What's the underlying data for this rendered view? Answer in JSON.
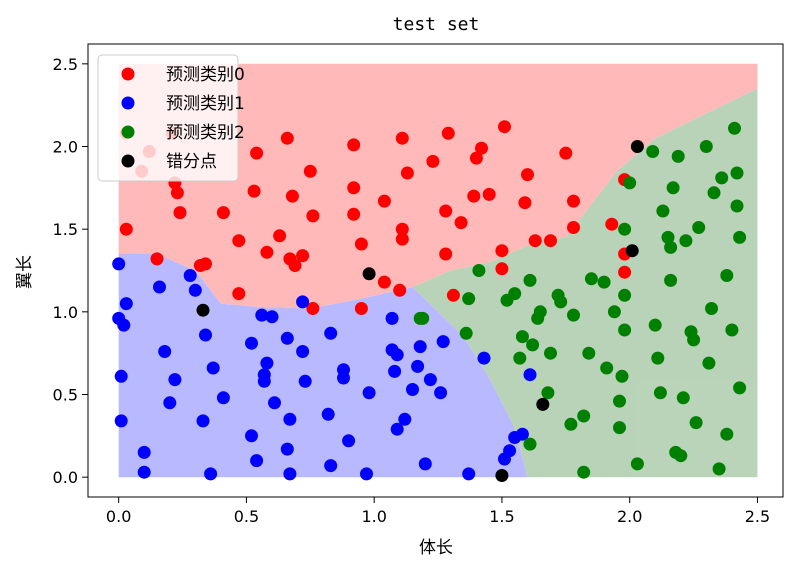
{
  "chart_data": {
    "type": "scatter",
    "title": "test set",
    "xlabel": "体长",
    "ylabel": "翼长",
    "xlim": [
      -0.12,
      2.6
    ],
    "ylim": [
      -0.12,
      2.62
    ],
    "xticks": [
      "0.0",
      "0.5",
      "1.0",
      "1.5",
      "2.0",
      "2.5"
    ],
    "yticks": [
      "0.0",
      "0.5",
      "1.0",
      "1.5",
      "2.0",
      "2.5"
    ],
    "legend_position": "top-left",
    "colors": {
      "class0": "#ff0000",
      "class1": "#0000ff",
      "class2": "#008000",
      "error": "#000000",
      "region0": "#ff8080",
      "region1": "#8080ff",
      "region2": "#80b080"
    },
    "series": [
      {
        "name": "预测类别0",
        "color": "#ff0000",
        "points": [
          [
            0.03,
            2.08
          ],
          [
            0.12,
            1.97
          ],
          [
            0.09,
            1.85
          ],
          [
            0.03,
            1.5
          ],
          [
            0.15,
            1.32
          ],
          [
            0.21,
            2.08
          ],
          [
            0.22,
            1.78
          ],
          [
            0.23,
            1.72
          ],
          [
            0.24,
            1.6
          ],
          [
            0.32,
            1.28
          ],
          [
            0.34,
            1.29
          ],
          [
            0.41,
            1.6
          ],
          [
            0.47,
            1.43
          ],
          [
            0.47,
            1.11
          ],
          [
            0.53,
            1.73
          ],
          [
            0.54,
            1.96
          ],
          [
            0.58,
            1.36
          ],
          [
            0.63,
            1.46
          ],
          [
            0.66,
            2.05
          ],
          [
            0.67,
            1.32
          ],
          [
            0.68,
            1.7
          ],
          [
            0.69,
            1.28
          ],
          [
            0.72,
            1.34
          ],
          [
            0.75,
            1.85
          ],
          [
            0.76,
            1.58
          ],
          [
            0.76,
            1.02
          ],
          [
            0.92,
            2.01
          ],
          [
            0.92,
            1.75
          ],
          [
            0.92,
            1.59
          ],
          [
            0.95,
            1.41
          ],
          [
            0.95,
            1.02
          ],
          [
            1.04,
            1.67
          ],
          [
            1.04,
            1.18
          ],
          [
            1.1,
            1.13
          ],
          [
            1.11,
            2.05
          ],
          [
            1.11,
            1.5
          ],
          [
            1.11,
            1.44
          ],
          [
            1.13,
            1.84
          ],
          [
            1.23,
            1.91
          ],
          [
            1.29,
            2.08
          ],
          [
            1.28,
            1.61
          ],
          [
            1.28,
            1.35
          ],
          [
            1.31,
            1.1
          ],
          [
            1.34,
            1.54
          ],
          [
            1.39,
            1.7
          ],
          [
            1.4,
            1.93
          ],
          [
            1.42,
            1.99
          ],
          [
            1.45,
            1.71
          ],
          [
            1.5,
            1.37
          ],
          [
            1.5,
            1.26
          ],
          [
            1.51,
            2.12
          ],
          [
            1.6,
            1.83
          ],
          [
            1.59,
            1.66
          ],
          [
            1.63,
            1.43
          ],
          [
            1.69,
            1.43
          ],
          [
            1.75,
            1.96
          ],
          [
            1.78,
            1.67
          ],
          [
            1.78,
            1.51
          ],
          [
            1.93,
            1.53
          ],
          [
            1.98,
            1.8
          ],
          [
            1.98,
            1.35
          ],
          [
            1.98,
            1.24
          ]
        ]
      },
      {
        "name": "预测类别1",
        "color": "#0000ff",
        "points": [
          [
            0.0,
            1.29
          ],
          [
            0.0,
            0.96
          ],
          [
            0.01,
            0.34
          ],
          [
            0.01,
            0.61
          ],
          [
            0.02,
            0.92
          ],
          [
            0.03,
            1.05
          ],
          [
            0.1,
            0.15
          ],
          [
            0.1,
            0.03
          ],
          [
            0.16,
            1.15
          ],
          [
            0.18,
            0.76
          ],
          [
            0.2,
            0.45
          ],
          [
            0.22,
            0.59
          ],
          [
            0.28,
            1.22
          ],
          [
            0.3,
            1.13
          ],
          [
            0.33,
            0.34
          ],
          [
            0.34,
            0.86
          ],
          [
            0.36,
            0.02
          ],
          [
            0.37,
            0.66
          ],
          [
            0.41,
            0.48
          ],
          [
            0.52,
            0.25
          ],
          [
            0.52,
            0.81
          ],
          [
            0.54,
            0.1
          ],
          [
            0.56,
            0.98
          ],
          [
            0.57,
            0.58
          ],
          [
            0.57,
            0.62
          ],
          [
            0.58,
            0.69
          ],
          [
            0.6,
            0.97
          ],
          [
            0.61,
            0.45
          ],
          [
            0.66,
            0.17
          ],
          [
            0.66,
            0.84
          ],
          [
            0.67,
            0.35
          ],
          [
            0.67,
            0.02
          ],
          [
            0.72,
            0.76
          ],
          [
            0.72,
            1.06
          ],
          [
            0.73,
            0.58
          ],
          [
            0.82,
            0.38
          ],
          [
            0.83,
            0.07
          ],
          [
            0.83,
            0.87
          ],
          [
            0.88,
            0.6
          ],
          [
            0.88,
            0.65
          ],
          [
            0.9,
            0.22
          ],
          [
            0.97,
            0.02
          ],
          [
            0.98,
            0.51
          ],
          [
            1.07,
            0.96
          ],
          [
            1.07,
            0.77
          ],
          [
            1.08,
            0.64
          ],
          [
            1.09,
            0.74
          ],
          [
            1.09,
            0.29
          ],
          [
            1.12,
            0.35
          ],
          [
            1.15,
            0.53
          ],
          [
            1.17,
            0.67
          ],
          [
            1.18,
            0.79
          ],
          [
            1.2,
            0.08
          ],
          [
            1.22,
            0.59
          ],
          [
            1.26,
            0.51
          ],
          [
            1.27,
            0.82
          ],
          [
            1.37,
            0.02
          ],
          [
            1.43,
            0.72
          ],
          [
            1.51,
            0.11
          ],
          [
            1.53,
            0.16
          ],
          [
            1.55,
            0.24
          ],
          [
            1.58,
            0.26
          ],
          [
            1.61,
            0.62
          ]
        ]
      },
      {
        "name": "预测类别2",
        "color": "#008000",
        "points": [
          [
            1.18,
            0.96
          ],
          [
            1.19,
            0.96
          ],
          [
            1.36,
            0.87
          ],
          [
            1.37,
            1.08
          ],
          [
            1.41,
            1.25
          ],
          [
            1.52,
            1.07
          ],
          [
            1.55,
            1.11
          ],
          [
            1.57,
            0.72
          ],
          [
            1.58,
            0.85
          ],
          [
            1.61,
            1.19
          ],
          [
            1.61,
            0.2
          ],
          [
            1.62,
            0.8
          ],
          [
            1.64,
            0.96
          ],
          [
            1.65,
            1.0
          ],
          [
            1.68,
            0.51
          ],
          [
            1.69,
            0.75
          ],
          [
            1.72,
            1.1
          ],
          [
            1.73,
            1.06
          ],
          [
            1.77,
            0.32
          ],
          [
            1.78,
            0.98
          ],
          [
            1.82,
            0.03
          ],
          [
            1.82,
            0.37
          ],
          [
            1.84,
            0.75
          ],
          [
            1.85,
            1.2
          ],
          [
            1.9,
            1.18
          ],
          [
            1.91,
            0.66
          ],
          [
            1.94,
            1.0
          ],
          [
            1.96,
            0.46
          ],
          [
            1.96,
            0.3
          ],
          [
            1.97,
            0.61
          ],
          [
            1.98,
            1.1
          ],
          [
            1.98,
            0.89
          ],
          [
            1.98,
            1.5
          ],
          [
            2.0,
            1.78
          ],
          [
            2.03,
            0.08
          ],
          [
            2.09,
            1.97
          ],
          [
            2.1,
            0.92
          ],
          [
            2.11,
            0.72
          ],
          [
            2.12,
            0.51
          ],
          [
            2.13,
            1.61
          ],
          [
            2.15,
            1.45
          ],
          [
            2.16,
            1.39
          ],
          [
            2.16,
            1.19
          ],
          [
            2.17,
            1.75
          ],
          [
            2.18,
            0.15
          ],
          [
            2.19,
            1.94
          ],
          [
            2.2,
            0.13
          ],
          [
            2.21,
            0.48
          ],
          [
            2.22,
            1.43
          ],
          [
            2.24,
            0.88
          ],
          [
            2.25,
            0.83
          ],
          [
            2.26,
            0.33
          ],
          [
            2.27,
            1.51
          ],
          [
            2.3,
            2.0
          ],
          [
            2.31,
            0.69
          ],
          [
            2.32,
            1.02
          ],
          [
            2.33,
            1.72
          ],
          [
            2.35,
            0.05
          ],
          [
            2.36,
            1.81
          ],
          [
            2.38,
            0.26
          ],
          [
            2.38,
            1.22
          ],
          [
            2.4,
            0.89
          ],
          [
            2.41,
            2.11
          ],
          [
            2.42,
            1.84
          ],
          [
            2.42,
            1.64
          ],
          [
            2.43,
            1.45
          ],
          [
            2.43,
            0.54
          ]
        ]
      },
      {
        "name": "错分点",
        "color": "#000000",
        "points": [
          [
            0.33,
            1.01
          ],
          [
            0.98,
            1.23
          ],
          [
            1.5,
            0.01
          ],
          [
            1.66,
            0.44
          ],
          [
            2.01,
            1.37
          ],
          [
            2.03,
            2.0
          ]
        ]
      }
    ],
    "background_regions": {
      "class0": "#ff8080",
      "class1": "#8080ff",
      "class2": "#80b080"
    }
  }
}
